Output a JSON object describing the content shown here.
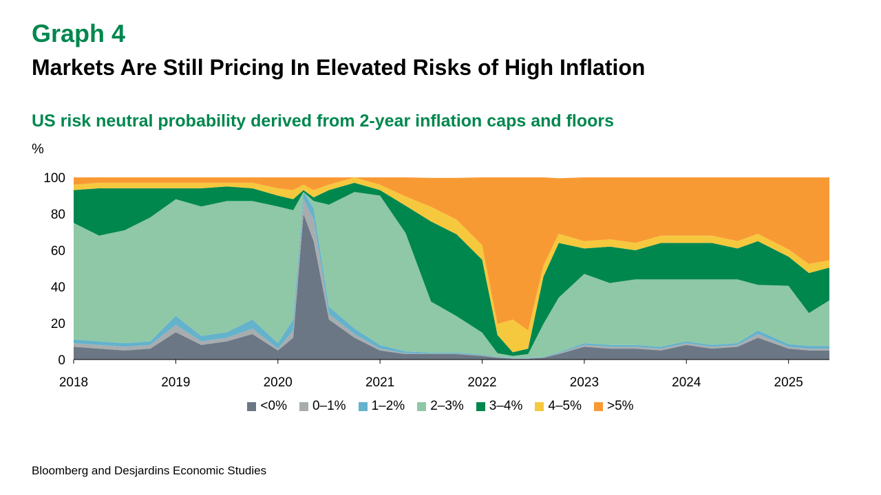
{
  "header": {
    "graph_label": "Graph 4",
    "title": "Markets Are Still Pricing In Elevated Risks of High Inflation",
    "subtitle": "US risk neutral probability derived from 2-year inflation caps and floors",
    "unit": "%"
  },
  "source": "Bloomberg and Desjardins Economic Studies",
  "chart_data": {
    "type": "area",
    "stacked": true,
    "ylim": [
      0,
      100
    ],
    "yticks": [
      0,
      20,
      40,
      60,
      80,
      100
    ],
    "xlim": [
      2018.0,
      2025.4
    ],
    "xticks": [
      2018,
      2019,
      2020,
      2021,
      2022,
      2023,
      2024,
      2025
    ],
    "xtick_labels": [
      "2018",
      "2019",
      "2020",
      "2021",
      "2022",
      "2023",
      "2024",
      "2025"
    ],
    "legend_position": "bottom",
    "x": [
      2018.0,
      2018.25,
      2018.5,
      2018.75,
      2019.0,
      2019.25,
      2019.5,
      2019.75,
      2020.0,
      2020.15,
      2020.25,
      2020.35,
      2020.5,
      2020.75,
      2021.0,
      2021.25,
      2021.5,
      2021.75,
      2022.0,
      2022.15,
      2022.3,
      2022.45,
      2022.6,
      2022.75,
      2023.0,
      2023.25,
      2023.5,
      2023.75,
      2024.0,
      2024.25,
      2024.5,
      2024.7,
      2025.0,
      2025.2,
      2025.4
    ],
    "series": [
      {
        "name": "<0%",
        "color": "#6b7785",
        "values": [
          7,
          6,
          5,
          6,
          15,
          8,
          10,
          14,
          5,
          12,
          80,
          65,
          22,
          12,
          5,
          3,
          3,
          3,
          2,
          1,
          0.5,
          0.5,
          1,
          3,
          7,
          6,
          6,
          5,
          8,
          6,
          7,
          12,
          6,
          5,
          5
        ]
      },
      {
        "name": "0–1%",
        "color": "#a7adaf",
        "values": [
          2,
          2,
          2,
          2,
          4,
          2,
          2,
          3,
          1,
          4,
          8,
          12,
          3,
          2,
          1,
          0.5,
          0.3,
          0.3,
          0.3,
          0.2,
          0.2,
          0.2,
          0.2,
          0.5,
          1,
          1,
          1,
          1,
          1,
          1,
          1,
          2,
          1,
          1,
          1
        ]
      },
      {
        "name": "1–2%",
        "color": "#64b2cc",
        "values": [
          2,
          2,
          2,
          2,
          5,
          3,
          3,
          5,
          3,
          6,
          4,
          6,
          4,
          3,
          2,
          1,
          0.5,
          0.5,
          0.5,
          0.3,
          0.3,
          0.3,
          0.3,
          0.5,
          1,
          1,
          1,
          1,
          1,
          1,
          1,
          2,
          1.5,
          1.5,
          1.5
        ]
      },
      {
        "name": "2–3%",
        "color": "#8fc8a7",
        "values": [
          64,
          58,
          62,
          68,
          64,
          71,
          72,
          65,
          75,
          60,
          0,
          4,
          56,
          75,
          82,
          65,
          28,
          20,
          12,
          2,
          1,
          2,
          18,
          30,
          38,
          34,
          36,
          37,
          34,
          36,
          35,
          25,
          32,
          18,
          25
        ]
      },
      {
        "name": "3–4%",
        "color": "#00874e",
        "values": [
          18,
          26,
          23,
          16,
          6,
          10,
          8,
          7,
          6,
          6,
          1,
          2,
          8,
          5,
          3,
          15,
          44,
          45,
          40,
          10,
          2,
          3,
          26,
          30,
          14,
          20,
          16,
          20,
          20,
          20,
          17,
          24,
          16,
          22,
          18
        ]
      },
      {
        "name": "4–5%",
        "color": "#f6c83e",
        "values": [
          3,
          3,
          3,
          3,
          3,
          3,
          2,
          3,
          4,
          5,
          3,
          4,
          3,
          3,
          3,
          5,
          8,
          8,
          8,
          6,
          18,
          10,
          6,
          5,
          4,
          4,
          4,
          4,
          4,
          4,
          4,
          4,
          4,
          5,
          4
        ]
      },
      {
        "name": ">5%",
        "color": "#f89a34",
        "values": [
          4,
          3,
          3,
          3,
          3,
          3,
          3,
          3,
          6,
          7,
          4,
          7,
          4,
          0,
          4,
          10.5,
          15.9,
          22.9,
          37.2,
          80.5,
          78,
          84,
          48.5,
          30.5,
          35,
          34,
          36,
          32,
          32,
          32,
          35,
          31,
          39.5,
          47.5,
          45.5
        ]
      }
    ]
  }
}
